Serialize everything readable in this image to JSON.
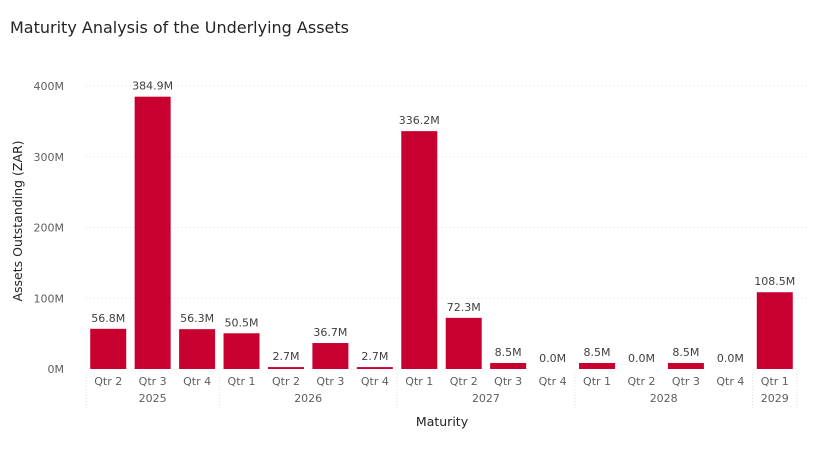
{
  "chart_data": {
    "type": "bar",
    "title": "Maturity Analysis of the Underlying Assets",
    "xlabel": "Maturity",
    "ylabel": "Assets Outstanding (ZAR)",
    "ylim": [
      0,
      400
    ],
    "y_unit": "M",
    "y_ticks": [
      "0M",
      "100M",
      "200M",
      "300M",
      "400M"
    ],
    "grid": true,
    "color": "#c8002f",
    "categories": [
      {
        "quarter": "Qtr 2",
        "year": "2025"
      },
      {
        "quarter": "Qtr 3",
        "year": "2025"
      },
      {
        "quarter": "Qtr 4",
        "year": "2025"
      },
      {
        "quarter": "Qtr 1",
        "year": "2026"
      },
      {
        "quarter": "Qtr 2",
        "year": "2026"
      },
      {
        "quarter": "Qtr 3",
        "year": "2026"
      },
      {
        "quarter": "Qtr 4",
        "year": "2026"
      },
      {
        "quarter": "Qtr 1",
        "year": "2027"
      },
      {
        "quarter": "Qtr 2",
        "year": "2027"
      },
      {
        "quarter": "Qtr 3",
        "year": "2027"
      },
      {
        "quarter": "Qtr 4",
        "year": "2027"
      },
      {
        "quarter": "Qtr 1",
        "year": "2028"
      },
      {
        "quarter": "Qtr 2",
        "year": "2028"
      },
      {
        "quarter": "Qtr 3",
        "year": "2028"
      },
      {
        "quarter": "Qtr 4",
        "year": "2028"
      },
      {
        "quarter": "Qtr 1",
        "year": "2029"
      }
    ],
    "values": [
      56.8,
      384.9,
      56.3,
      50.5,
      2.7,
      36.7,
      2.7,
      336.2,
      72.3,
      8.5,
      0.0,
      8.5,
      0.0,
      8.5,
      0.0,
      108.5
    ],
    "data_labels": [
      "56.8M",
      "384.9M",
      "56.3M",
      "50.5M",
      "2.7M",
      "36.7M",
      "2.7M",
      "336.2M",
      "72.3M",
      "8.5M",
      "0.0M",
      "8.5M",
      "0.0M",
      "8.5M",
      "0.0M",
      "108.5M"
    ],
    "years": [
      "2025",
      "2026",
      "2027",
      "2028",
      "2029"
    ]
  }
}
